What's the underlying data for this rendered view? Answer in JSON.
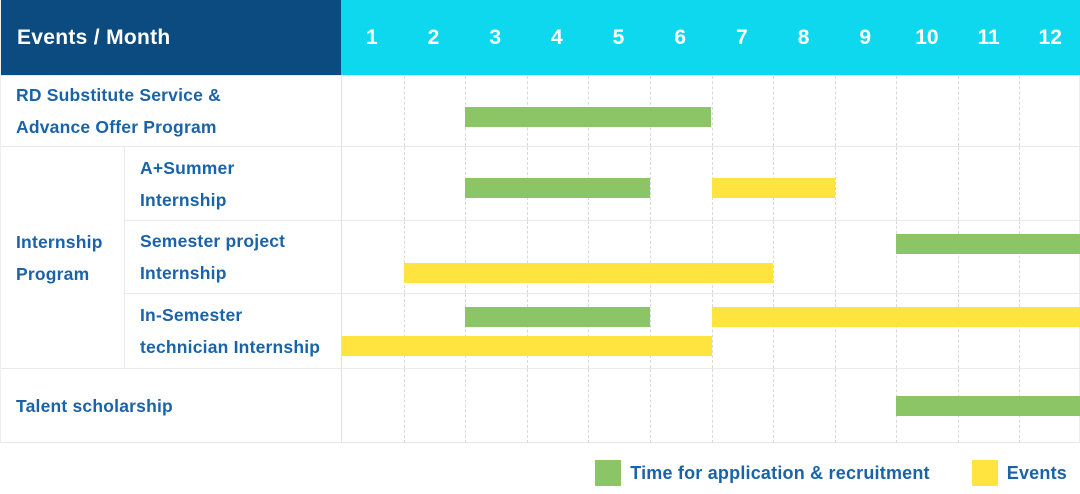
{
  "header": {
    "title": "Events / Month",
    "months": [
      "1",
      "2",
      "3",
      "4",
      "5",
      "6",
      "7",
      "8",
      "9",
      "10",
      "11",
      "12"
    ]
  },
  "colors": {
    "header_bg": "#0b4b80",
    "months_bg": "#0ed8ee",
    "application_bar": "#8cc566",
    "event_bar": "#ffe33e",
    "label_text": "#1b63a8"
  },
  "group": {
    "label": "Internship Program",
    "label_lines": [
      "Internship",
      "Program"
    ]
  },
  "chart_data": {
    "type": "gantt",
    "x_axis_label": "Month",
    "x_ticks": [
      "1",
      "2",
      "3",
      "4",
      "5",
      "6",
      "7",
      "8",
      "9",
      "10",
      "11",
      "12"
    ],
    "x_range": [
      1,
      12
    ],
    "grid": true,
    "legend_position": "bottom-right",
    "legend": [
      {
        "key": "application",
        "label": "Time for application & recruitment",
        "color": "#8cc566"
      },
      {
        "key": "event",
        "label": "Events",
        "color": "#ffe33e"
      }
    ],
    "rows": [
      {
        "label": "RD Substitute Service & Advance Offer Program",
        "label_lines": [
          "RD Substitute Service &",
          "Advance Offer Program"
        ],
        "group": null,
        "bars": [
          {
            "type": "application",
            "start_month": 3,
            "end_month": 6,
            "lane": "mid"
          }
        ]
      },
      {
        "label": "A+Summer Internship",
        "label_lines": [
          "A+Summer",
          "Internship"
        ],
        "group": "Internship Program",
        "bars": [
          {
            "type": "application",
            "start_month": 3,
            "end_month": 5,
            "lane": "mid"
          },
          {
            "type": "event",
            "start_month": 7,
            "end_month": 8,
            "lane": "mid"
          }
        ]
      },
      {
        "label": "Semester project Internship",
        "label_lines": [
          "Semester project",
          "Internship"
        ],
        "group": "Internship Program",
        "bars": [
          {
            "type": "application",
            "start_month": 10,
            "end_month": 12,
            "lane": "top"
          },
          {
            "type": "event",
            "start_month": 2,
            "end_month": 7,
            "lane": "bottom"
          }
        ]
      },
      {
        "label": "In-Semester technician Internship",
        "label_lines": [
          "In-Semester",
          "technician Internship"
        ],
        "group": "Internship Program",
        "bars": [
          {
            "type": "application",
            "start_month": 3,
            "end_month": 5,
            "lane": "top"
          },
          {
            "type": "event",
            "start_month": 7,
            "end_month": 12,
            "lane": "top"
          },
          {
            "type": "event",
            "start_month": 1,
            "end_month": 6,
            "lane": "bottom"
          }
        ]
      },
      {
        "label": "Talent scholarship",
        "label_lines": [
          "Talent scholarship"
        ],
        "group": null,
        "bars": [
          {
            "type": "application",
            "start_month": 10,
            "end_month": 12,
            "lane": "center"
          }
        ]
      }
    ]
  }
}
